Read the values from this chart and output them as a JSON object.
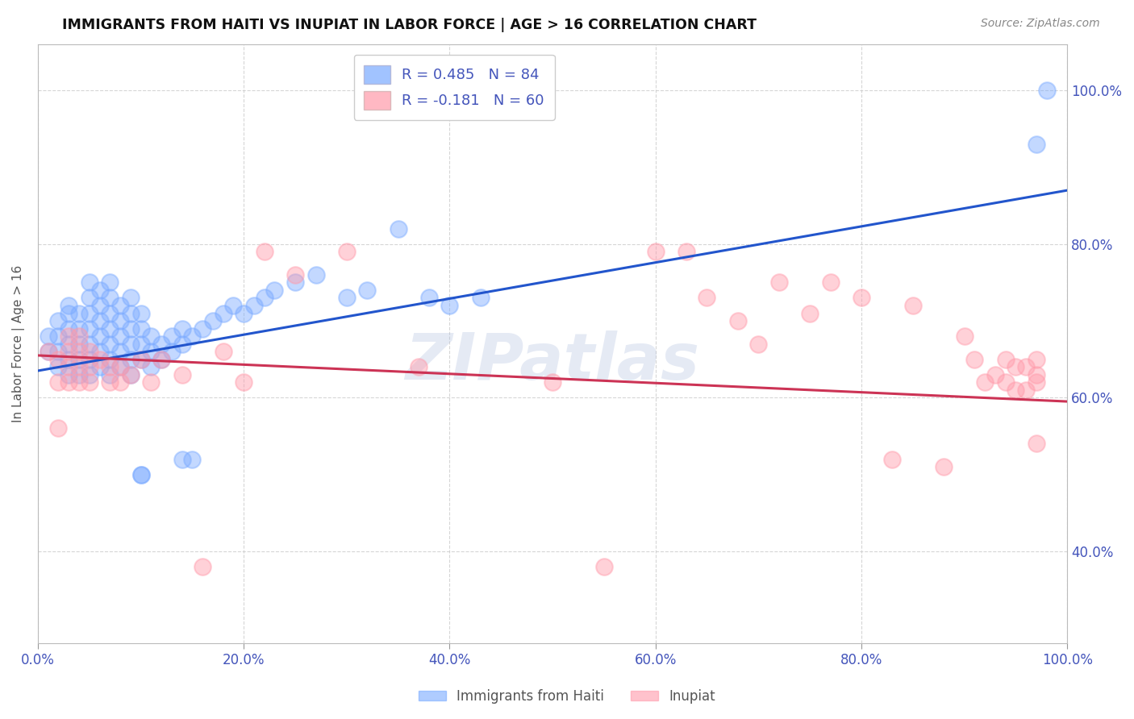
{
  "title": "IMMIGRANTS FROM HAITI VS INUPIAT IN LABOR FORCE | AGE > 16 CORRELATION CHART",
  "source": "Source: ZipAtlas.com",
  "ylabel": "In Labor Force | Age > 16",
  "xlabel": "",
  "xlim": [
    0.0,
    1.0
  ],
  "ylim": [
    0.28,
    1.06
  ],
  "ytick_labels": [
    "40.0%",
    "60.0%",
    "80.0%",
    "100.0%"
  ],
  "ytick_values": [
    0.4,
    0.6,
    0.8,
    1.0
  ],
  "xtick_labels": [
    "0.0%",
    "20.0%",
    "40.0%",
    "60.0%",
    "80.0%",
    "100.0%"
  ],
  "xtick_values": [
    0.0,
    0.2,
    0.4,
    0.6,
    0.8,
    1.0
  ],
  "haiti_R": 0.485,
  "haiti_N": 84,
  "inupiat_R": -0.181,
  "inupiat_N": 60,
  "haiti_color": "#7aaaff",
  "inupiat_color": "#ff9aaa",
  "haiti_line_color": "#2255cc",
  "inupiat_line_color": "#cc3355",
  "background_color": "#ffffff",
  "grid_color": "#cccccc",
  "axis_label_color": "#4455bb",
  "watermark": "ZIPatlas",
  "haiti_scatter_x": [
    0.01,
    0.01,
    0.02,
    0.02,
    0.02,
    0.02,
    0.03,
    0.03,
    0.03,
    0.03,
    0.03,
    0.03,
    0.04,
    0.04,
    0.04,
    0.04,
    0.04,
    0.05,
    0.05,
    0.05,
    0.05,
    0.05,
    0.05,
    0.05,
    0.06,
    0.06,
    0.06,
    0.06,
    0.06,
    0.06,
    0.07,
    0.07,
    0.07,
    0.07,
    0.07,
    0.07,
    0.07,
    0.08,
    0.08,
    0.08,
    0.08,
    0.08,
    0.09,
    0.09,
    0.09,
    0.09,
    0.09,
    0.09,
    0.1,
    0.1,
    0.1,
    0.1,
    0.11,
    0.11,
    0.11,
    0.12,
    0.12,
    0.13,
    0.13,
    0.14,
    0.14,
    0.15,
    0.16,
    0.17,
    0.18,
    0.19,
    0.2,
    0.21,
    0.22,
    0.23,
    0.25,
    0.27,
    0.3,
    0.32,
    0.35,
    0.38,
    0.4,
    0.43,
    0.97,
    0.98,
    0.1,
    0.1,
    0.14,
    0.15
  ],
  "haiti_scatter_y": [
    0.66,
    0.68,
    0.64,
    0.66,
    0.68,
    0.7,
    0.63,
    0.65,
    0.67,
    0.69,
    0.71,
    0.72,
    0.63,
    0.65,
    0.67,
    0.69,
    0.71,
    0.63,
    0.65,
    0.67,
    0.69,
    0.71,
    0.73,
    0.75,
    0.64,
    0.66,
    0.68,
    0.7,
    0.72,
    0.74,
    0.63,
    0.65,
    0.67,
    0.69,
    0.71,
    0.73,
    0.75,
    0.64,
    0.66,
    0.68,
    0.7,
    0.72,
    0.63,
    0.65,
    0.67,
    0.69,
    0.71,
    0.73,
    0.65,
    0.67,
    0.69,
    0.71,
    0.64,
    0.66,
    0.68,
    0.65,
    0.67,
    0.66,
    0.68,
    0.67,
    0.69,
    0.68,
    0.69,
    0.7,
    0.71,
    0.72,
    0.71,
    0.72,
    0.73,
    0.74,
    0.75,
    0.76,
    0.73,
    0.74,
    0.82,
    0.73,
    0.72,
    0.73,
    0.93,
    1.0,
    0.5,
    0.5,
    0.52,
    0.52
  ],
  "inupiat_scatter_x": [
    0.01,
    0.02,
    0.02,
    0.02,
    0.03,
    0.03,
    0.03,
    0.03,
    0.04,
    0.04,
    0.04,
    0.04,
    0.05,
    0.05,
    0.05,
    0.06,
    0.07,
    0.07,
    0.08,
    0.08,
    0.09,
    0.1,
    0.11,
    0.12,
    0.14,
    0.16,
    0.18,
    0.2,
    0.22,
    0.25,
    0.3,
    0.37,
    0.5,
    0.55,
    0.6,
    0.63,
    0.65,
    0.68,
    0.7,
    0.72,
    0.75,
    0.77,
    0.8,
    0.83,
    0.85,
    0.88,
    0.9,
    0.91,
    0.92,
    0.93,
    0.94,
    0.94,
    0.95,
    0.95,
    0.96,
    0.96,
    0.97,
    0.97,
    0.97,
    0.97
  ],
  "inupiat_scatter_y": [
    0.66,
    0.62,
    0.65,
    0.56,
    0.62,
    0.64,
    0.66,
    0.68,
    0.62,
    0.64,
    0.66,
    0.68,
    0.62,
    0.64,
    0.66,
    0.65,
    0.62,
    0.64,
    0.62,
    0.64,
    0.63,
    0.65,
    0.62,
    0.65,
    0.63,
    0.38,
    0.66,
    0.62,
    0.79,
    0.76,
    0.79,
    0.64,
    0.62,
    0.38,
    0.79,
    0.79,
    0.73,
    0.7,
    0.67,
    0.75,
    0.71,
    0.75,
    0.73,
    0.52,
    0.72,
    0.51,
    0.68,
    0.65,
    0.62,
    0.63,
    0.65,
    0.62,
    0.64,
    0.61,
    0.64,
    0.61,
    0.54,
    0.62,
    0.63,
    0.65
  ],
  "haiti_line_x": [
    0.0,
    1.0
  ],
  "haiti_line_y": [
    0.635,
    0.87
  ],
  "inupiat_line_x": [
    0.0,
    1.0
  ],
  "inupiat_line_y": [
    0.655,
    0.595
  ]
}
